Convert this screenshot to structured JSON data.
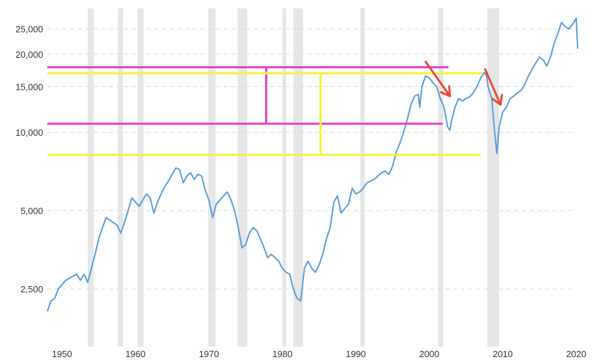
{
  "chart_data": {
    "type": "line",
    "title": "",
    "xlabel": "",
    "ylabel": "",
    "y_scale": "log",
    "xlim": [
      1948,
      2020
    ],
    "ylim": [
      1500,
      30000
    ],
    "grid": true,
    "legend": "none",
    "x_ticks": [
      {
        "value": 1950,
        "label": "1950"
      },
      {
        "value": 1960,
        "label": "1960"
      },
      {
        "value": 1970,
        "label": "1970"
      },
      {
        "value": 1980,
        "label": "1980"
      },
      {
        "value": 1990,
        "label": "1990"
      },
      {
        "value": 2000,
        "label": "2000"
      },
      {
        "value": 2010,
        "label": "2010"
      },
      {
        "value": 2020,
        "label": "2020"
      }
    ],
    "y_ticks": [
      {
        "value": 2500,
        "label": "2,500"
      },
      {
        "value": 5000,
        "label": "5,000"
      },
      {
        "value": 10000,
        "label": "10,000"
      },
      {
        "value": 15000,
        "label": "15,000"
      },
      {
        "value": 20000,
        "label": "20,000"
      },
      {
        "value": 25000,
        "label": "25,000"
      }
    ],
    "recessions": [
      [
        1953.5,
        1954.3
      ],
      [
        1957.6,
        1958.3
      ],
      [
        1960.3,
        1961.1
      ],
      [
        1969.9,
        1970.9
      ],
      [
        1973.9,
        1975.2
      ],
      [
        1980.0,
        1980.5
      ],
      [
        1981.5,
        1982.8
      ],
      [
        1990.6,
        1991.2
      ],
      [
        2001.2,
        2001.9
      ],
      [
        2007.9,
        2009.5
      ]
    ],
    "series": [
      {
        "color": "#5b9bd5",
        "points": [
          [
            1948.0,
            2050
          ],
          [
            1948.5,
            2250
          ],
          [
            1949.0,
            2300
          ],
          [
            1949.5,
            2500
          ],
          [
            1950.0,
            2600
          ],
          [
            1950.5,
            2700
          ],
          [
            1951.0,
            2750
          ],
          [
            1951.5,
            2800
          ],
          [
            1952.0,
            2850
          ],
          [
            1952.5,
            2700
          ],
          [
            1953.0,
            2850
          ],
          [
            1953.5,
            2650
          ],
          [
            1954.0,
            3000
          ],
          [
            1954.5,
            3400
          ],
          [
            1955.0,
            3900
          ],
          [
            1955.5,
            4300
          ],
          [
            1956.0,
            4700
          ],
          [
            1956.5,
            4600
          ],
          [
            1957.0,
            4500
          ],
          [
            1957.5,
            4400
          ],
          [
            1958.0,
            4100
          ],
          [
            1958.5,
            4500
          ],
          [
            1959.0,
            5000
          ],
          [
            1959.5,
            5600
          ],
          [
            1960.0,
            5400
          ],
          [
            1960.5,
            5200
          ],
          [
            1961.0,
            5500
          ],
          [
            1961.5,
            5800
          ],
          [
            1962.0,
            5600
          ],
          [
            1962.5,
            4900
          ],
          [
            1963.0,
            5400
          ],
          [
            1963.5,
            5800
          ],
          [
            1964.0,
            6200
          ],
          [
            1964.5,
            6500
          ],
          [
            1965.0,
            6900
          ],
          [
            1965.5,
            7300
          ],
          [
            1966.0,
            7200
          ],
          [
            1966.5,
            6400
          ],
          [
            1967.0,
            6800
          ],
          [
            1967.5,
            7000
          ],
          [
            1968.0,
            6600
          ],
          [
            1968.5,
            6900
          ],
          [
            1969.0,
            6800
          ],
          [
            1969.5,
            6000
          ],
          [
            1970.0,
            5500
          ],
          [
            1970.5,
            4700
          ],
          [
            1971.0,
            5300
          ],
          [
            1971.5,
            5500
          ],
          [
            1972.0,
            5700
          ],
          [
            1972.5,
            5900
          ],
          [
            1973.0,
            5500
          ],
          [
            1973.5,
            5000
          ],
          [
            1974.0,
            4300
          ],
          [
            1974.5,
            3600
          ],
          [
            1975.0,
            3700
          ],
          [
            1975.5,
            4100
          ],
          [
            1976.0,
            4300
          ],
          [
            1976.5,
            4200
          ],
          [
            1977.0,
            3900
          ],
          [
            1977.5,
            3600
          ],
          [
            1978.0,
            3300
          ],
          [
            1978.5,
            3400
          ],
          [
            1979.0,
            3300
          ],
          [
            1979.5,
            3200
          ],
          [
            1980.0,
            3000
          ],
          [
            1980.5,
            2900
          ],
          [
            1981.0,
            2850
          ],
          [
            1981.5,
            2500
          ],
          [
            1982.0,
            2300
          ],
          [
            1982.5,
            2250
          ],
          [
            1983.0,
            3000
          ],
          [
            1983.5,
            3200
          ],
          [
            1984.0,
            3000
          ],
          [
            1984.5,
            2900
          ],
          [
            1985.0,
            3100
          ],
          [
            1985.5,
            3400
          ],
          [
            1986.0,
            3900
          ],
          [
            1986.5,
            4300
          ],
          [
            1987.0,
            5400
          ],
          [
            1987.5,
            5700
          ],
          [
            1988.0,
            4900
          ],
          [
            1988.5,
            5100
          ],
          [
            1989.0,
            5300
          ],
          [
            1989.5,
            6100
          ],
          [
            1990.0,
            5800
          ],
          [
            1990.5,
            5900
          ],
          [
            1991.0,
            6100
          ],
          [
            1991.5,
            6400
          ],
          [
            1992.0,
            6500
          ],
          [
            1992.5,
            6600
          ],
          [
            1993.0,
            6800
          ],
          [
            1993.5,
            7000
          ],
          [
            1994.0,
            7100
          ],
          [
            1994.5,
            6900
          ],
          [
            1995.0,
            7400
          ],
          [
            1995.5,
            8400
          ],
          [
            1996.0,
            9100
          ],
          [
            1996.5,
            10000
          ],
          [
            1997.0,
            11200
          ],
          [
            1997.5,
            12800
          ],
          [
            1998.0,
            13800
          ],
          [
            1998.5,
            14000
          ],
          [
            1998.7,
            12500
          ],
          [
            1999.0,
            15000
          ],
          [
            1999.5,
            16500
          ],
          [
            2000.0,
            16200
          ],
          [
            2000.5,
            15500
          ],
          [
            2001.0,
            15000
          ],
          [
            2001.5,
            13500
          ],
          [
            2002.0,
            12500
          ],
          [
            2002.5,
            10500
          ],
          [
            2002.8,
            10200
          ],
          [
            2003.0,
            11000
          ],
          [
            2003.5,
            12500
          ],
          [
            2004.0,
            13500
          ],
          [
            2004.5,
            13200
          ],
          [
            2005.0,
            13500
          ],
          [
            2005.5,
            13700
          ],
          [
            2006.0,
            14200
          ],
          [
            2006.5,
            15000
          ],
          [
            2007.0,
            16200
          ],
          [
            2007.5,
            17000
          ],
          [
            2007.8,
            16500
          ],
          [
            2008.0,
            15000
          ],
          [
            2008.5,
            13500
          ],
          [
            2008.9,
            10000
          ],
          [
            2009.2,
            8300
          ],
          [
            2009.5,
            10500
          ],
          [
            2010.0,
            12000
          ],
          [
            2010.5,
            12500
          ],
          [
            2011.0,
            13500
          ],
          [
            2011.5,
            13800
          ],
          [
            2012.0,
            14200
          ],
          [
            2012.5,
            14500
          ],
          [
            2013.0,
            15300
          ],
          [
            2013.5,
            16500
          ],
          [
            2014.0,
            17500
          ],
          [
            2014.5,
            18500
          ],
          [
            2015.0,
            19500
          ],
          [
            2015.5,
            19000
          ],
          [
            2016.0,
            18000
          ],
          [
            2016.5,
            19500
          ],
          [
            2017.0,
            22000
          ],
          [
            2017.5,
            24000
          ],
          [
            2018.0,
            26500
          ],
          [
            2018.5,
            25500
          ],
          [
            2019.0,
            25000
          ],
          [
            2019.5,
            26000
          ],
          [
            2020.0,
            27500
          ],
          [
            2020.2,
            21000
          ]
        ]
      }
    ],
    "annotations": [
      {
        "kind": "hline",
        "color": "#e83fc1",
        "y": 17800,
        "x": [
          1948.0,
          2002.6
        ]
      },
      {
        "kind": "hline",
        "color": "#e83fc1",
        "y": 10800,
        "x": [
          1948.0,
          2001.8
        ]
      },
      {
        "kind": "vline",
        "color": "#e83fc1",
        "x": 1977.8,
        "y": [
          10800,
          17800
        ]
      },
      {
        "kind": "hline",
        "color": "#f3f33a",
        "y": 16900,
        "x": [
          1948.0,
          2007.2
        ]
      },
      {
        "kind": "hline",
        "color": "#f3f33a",
        "y": 8200,
        "x": [
          1948.0,
          2007.0
        ]
      },
      {
        "kind": "vline",
        "color": "#f3f33a",
        "x": 1985.2,
        "y": [
          8200,
          16900
        ]
      },
      {
        "kind": "arrow",
        "color": "#e8473a",
        "from": [
          1999.5,
          18700
        ],
        "to": [
          2002.8,
          13800
        ]
      },
      {
        "kind": "arrow",
        "color": "#e8473a",
        "from": [
          2007.6,
          17500
        ],
        "to": [
          2009.7,
          12800
        ]
      }
    ]
  }
}
